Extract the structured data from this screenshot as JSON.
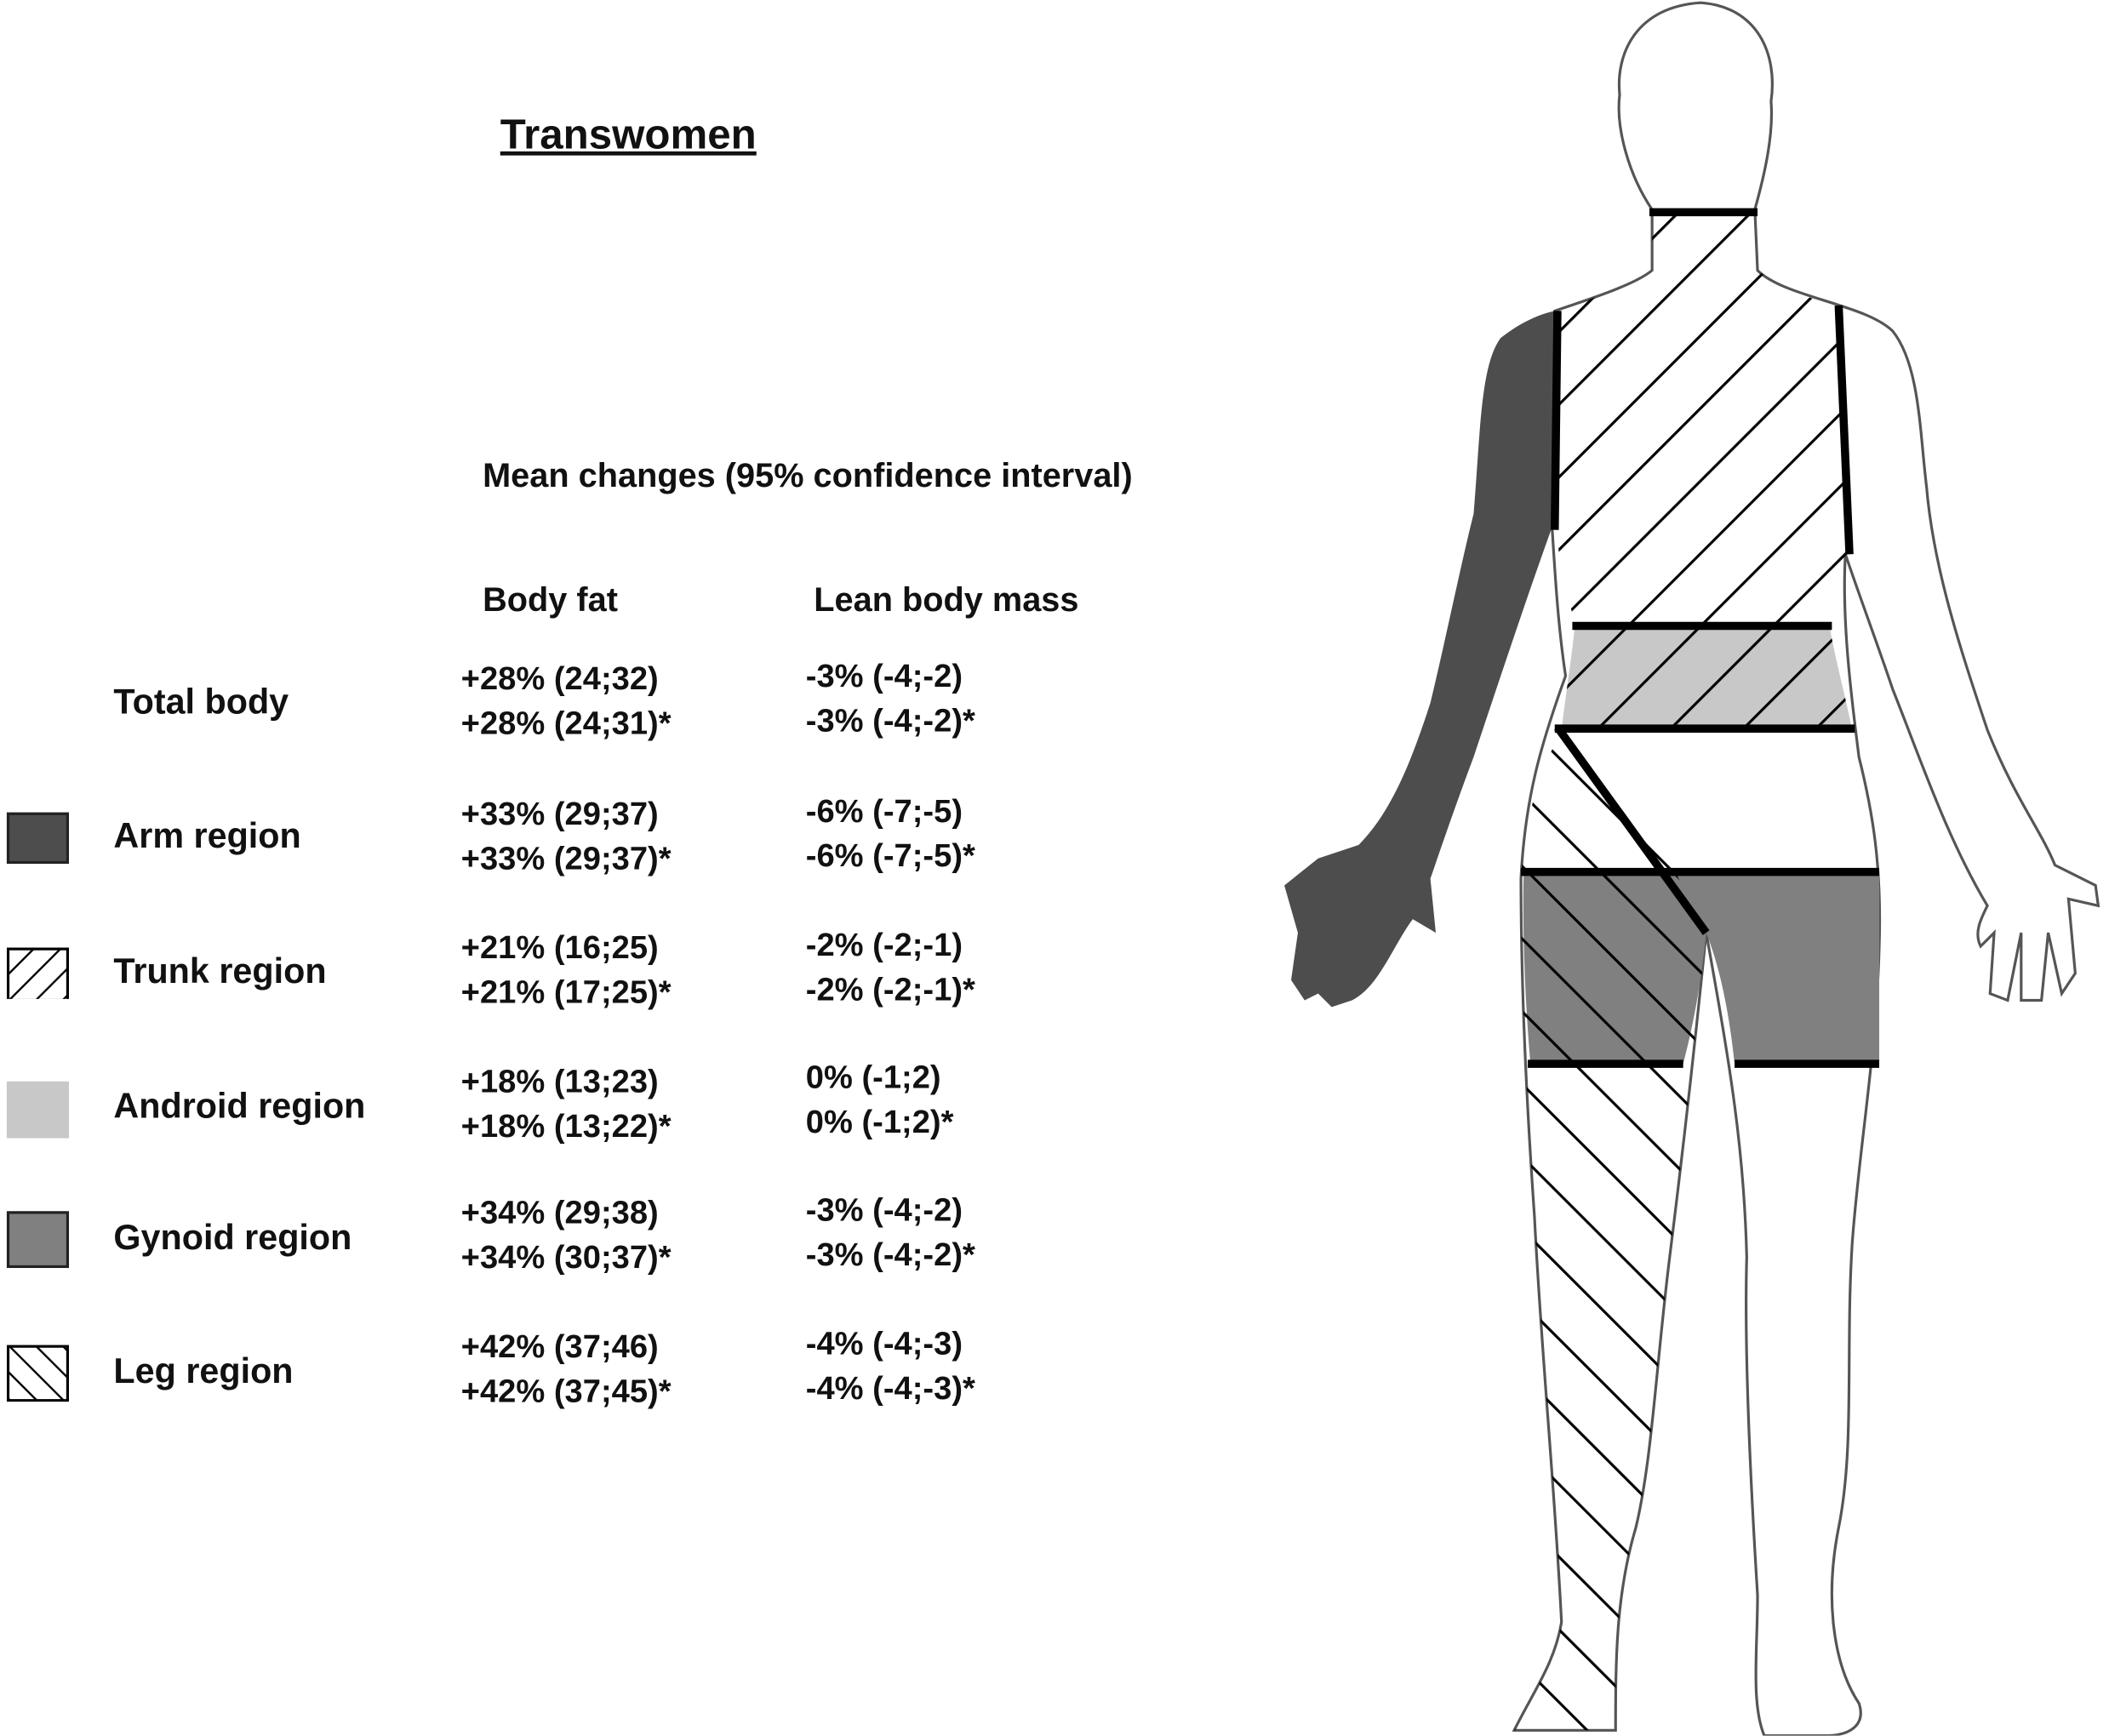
{
  "title": "Transwomen",
  "subtitle": "Mean changes (95% confidence interval)",
  "columns": {
    "body_fat": "Body fat",
    "lean_body_mass": "Lean body mass"
  },
  "colors": {
    "arm": "#4d4d4d",
    "android": "#c8c8c8",
    "gynoid": "#808080",
    "outline": "#000000"
  },
  "rows": [
    {
      "label": "Total body",
      "swatch": "none",
      "fat": [
        "+28% (24;32)",
        "+28% (24;31)*"
      ],
      "lean": [
        "-3% (-4;-2)",
        "-3% (-4;-2)*"
      ]
    },
    {
      "label": "Arm region",
      "swatch": "dark-grey-fill",
      "fat": [
        "+33% (29;37)",
        "+33% (29;37)*"
      ],
      "lean": [
        "-6% (-7;-5)",
        "-6% (-7;-5)*"
      ]
    },
    {
      "label": "Trunk region",
      "swatch": "forward-hatch",
      "fat": [
        "+21% (16;25)",
        "+21% (17;25)*"
      ],
      "lean": [
        "-2% (-2;-1)",
        "-2% (-2;-1)*"
      ]
    },
    {
      "label": "Android region",
      "swatch": "light-grey-fill",
      "fat": [
        "+18% (13;23)",
        "+18% (13;22)*"
      ],
      "lean": [
        "0% (-1;2)",
        "0% (-1;2)*"
      ]
    },
    {
      "label": "Gynoid region",
      "swatch": "mid-grey-fill",
      "fat": [
        "+34% (29;38)",
        "+34% (30;37)*"
      ],
      "lean": [
        "-3% (-4;-2)",
        "-3% (-4;-2)*"
      ]
    },
    {
      "label": "Leg region",
      "swatch": "back-hatch",
      "fat": [
        "+42% (37;46)",
        "+42% (37;45)*"
      ],
      "lean": [
        "-4% (-4;-3)",
        "-4% (-4;-3)*"
      ]
    }
  ]
}
